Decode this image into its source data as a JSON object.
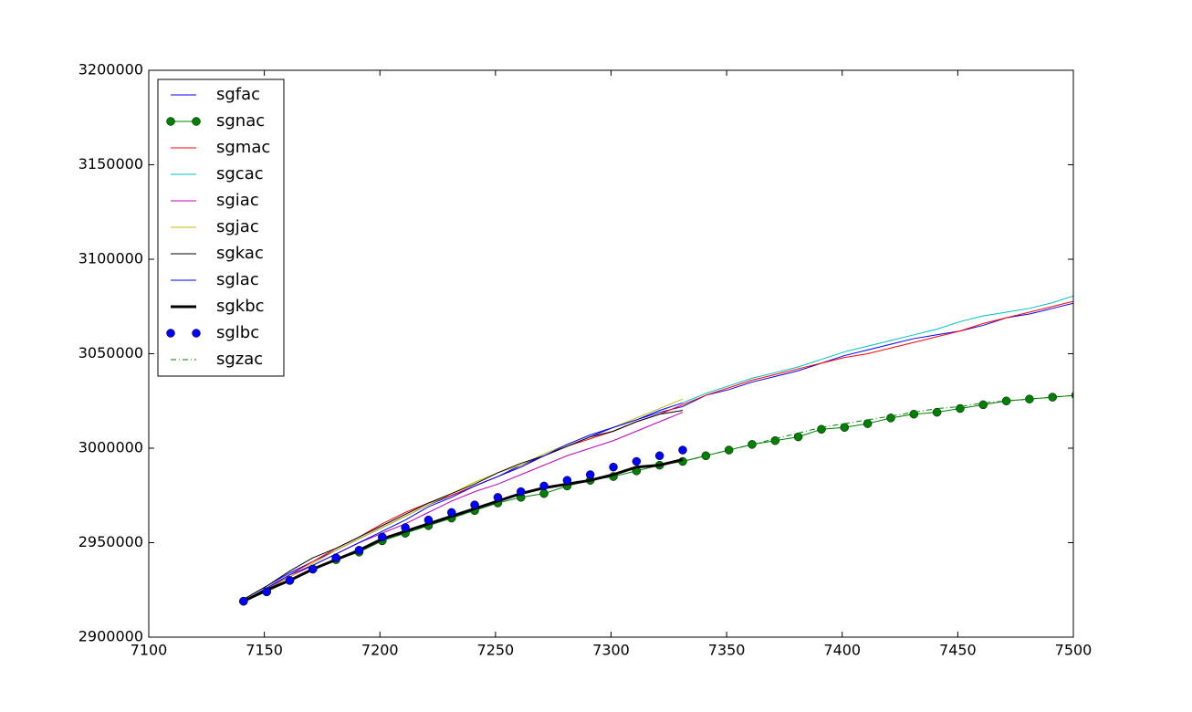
{
  "chart_data": {
    "type": "line",
    "x": [
      7141,
      7151,
      7161,
      7171,
      7181,
      7191,
      7201,
      7211,
      7221,
      7231,
      7241,
      7251,
      7261,
      7271,
      7281,
      7291,
      7301,
      7311,
      7321,
      7331,
      7341,
      7351,
      7361,
      7371,
      7381,
      7391,
      7401,
      7411,
      7421,
      7431,
      7441,
      7451,
      7461,
      7471,
      7481,
      7491,
      7501
    ],
    "xlim": [
      7100,
      7500
    ],
    "xticks": [
      7100,
      7150,
      7200,
      7250,
      7300,
      7350,
      7400,
      7450,
      7500
    ],
    "ylim": [
      2900000,
      3200000
    ],
    "yticks": [
      2900000,
      2950000,
      3000000,
      3050000,
      3100000,
      3150000,
      3200000
    ],
    "legend": "upper left",
    "series": [
      {
        "name": "sgfac",
        "color": "#0000ff",
        "linewidth": 1,
        "marker": "none",
        "linestyle": "solid",
        "values": [
          2920000,
          2927000,
          2934000,
          2940000,
          2946000,
          2952000,
          2958000,
          2964000,
          2970000,
          2975000,
          2980000,
          2985000,
          2991000,
          2996000,
          3001000,
          3006000,
          3011000,
          3015000,
          3019000,
          3022000,
          3028000,
          3031000,
          3035000,
          3038000,
          3041000,
          3045000,
          3049000,
          3052000,
          3055000,
          3058000,
          3060000,
          3062000,
          3065000,
          3069000,
          3071000,
          3074000,
          3077000
        ]
      },
      {
        "name": "sgnac",
        "color": "#008000",
        "linewidth": 1,
        "marker": "o",
        "linestyle": "solid",
        "values": [
          2919000,
          2924000,
          2930000,
          2936000,
          2941000,
          2945000,
          2951000,
          2955000,
          2959000,
          2963000,
          2967000,
          2971000,
          2974000,
          2976000,
          2980000,
          2983000,
          2985000,
          2988000,
          2991000,
          2993000,
          2996000,
          2999000,
          3002000,
          3004000,
          3006000,
          3010000,
          3011000,
          3013000,
          3016000,
          3018000,
          3019000,
          3021000,
          3023000,
          3025000,
          3026000,
          3027000,
          3028000
        ]
      },
      {
        "name": "sgmac",
        "color": "#ff0000",
        "linewidth": 1,
        "marker": "none",
        "linestyle": "solid",
        "values": [
          2919000,
          2926000,
          2933000,
          2940000,
          2947000,
          2953000,
          2960000,
          2966000,
          2971000,
          2975000,
          2980000,
          2985000,
          2990000,
          2996000,
          3001000,
          3005000,
          3009000,
          3014000,
          3018000,
          3023000,
          3028000,
          3032000,
          3036000,
          3039000,
          3042000,
          3045000,
          3048000,
          3050000,
          3053000,
          3056000,
          3059000,
          3062000,
          3066000,
          3069000,
          3072000,
          3075000,
          3078000
        ]
      },
      {
        "name": "sgcac",
        "color": "#00bfbf",
        "linewidth": 1,
        "marker": "none",
        "linestyle": "solid",
        "values": [
          null,
          null,
          null,
          null,
          null,
          null,
          null,
          null,
          null,
          null,
          null,
          null,
          null,
          null,
          null,
          null,
          null,
          null,
          null,
          3024000,
          3029000,
          3033000,
          3037000,
          3040000,
          3043000,
          3047000,
          3051000,
          3054000,
          3057000,
          3060000,
          3063000,
          3067000,
          3070000,
          3072000,
          3074000,
          3077000,
          3081000
        ]
      },
      {
        "name": "sgiac",
        "color": "#bf00bf",
        "linewidth": 1,
        "marker": "none",
        "linestyle": "solid",
        "values": [
          2919000,
          2926000,
          2932000,
          2938000,
          2944000,
          2950000,
          2955000,
          2960000,
          2966000,
          2972000,
          2977000,
          2981000,
          2986000,
          2991000,
          2996000,
          3000000,
          3004000,
          3009000,
          3014000,
          3019000,
          null,
          null,
          null,
          null,
          null,
          null,
          null,
          null,
          null,
          null,
          null,
          null,
          null,
          null,
          null,
          null,
          null
        ]
      },
      {
        "name": "sgjac",
        "color": "#bfbf00",
        "linewidth": 1,
        "marker": "none",
        "linestyle": "solid",
        "values": [
          2919000,
          2925000,
          2932000,
          2939000,
          2946000,
          2952000,
          2958000,
          2964000,
          2970000,
          2976000,
          2982000,
          2987000,
          2991000,
          2997000,
          3002000,
          3007000,
          3011000,
          3016000,
          3021000,
          3026000,
          null,
          null,
          null,
          null,
          null,
          null,
          null,
          null,
          null,
          null,
          null,
          null,
          null,
          null,
          null,
          null,
          null
        ]
      },
      {
        "name": "sgkac",
        "color": "#000000",
        "linewidth": 1,
        "marker": "none",
        "linestyle": "solid",
        "values": [
          2920000,
          2927000,
          2935000,
          2942000,
          2947000,
          2953000,
          2959000,
          2965000,
          2971000,
          2976000,
          2981000,
          2987000,
          2992000,
          2996000,
          3001000,
          3006000,
          3009000,
          3014000,
          3018000,
          3020000,
          null,
          null,
          null,
          null,
          null,
          null,
          null,
          null,
          null,
          null,
          null,
          null,
          null,
          null,
          null,
          null,
          null
        ]
      },
      {
        "name": "sglac",
        "color": "#0000ff",
        "linewidth": 1,
        "marker": "none",
        "linestyle": "solid",
        "values": [
          2919000,
          2926000,
          2933000,
          2938000,
          2944000,
          2950000,
          2956000,
          2962000,
          2969000,
          2974000,
          2980000,
          2985000,
          2990000,
          2996000,
          3002000,
          3007000,
          3011000,
          3015000,
          3020000,
          3024000,
          null,
          null,
          null,
          null,
          null,
          null,
          null,
          null,
          null,
          null,
          null,
          null,
          null,
          null,
          null,
          null,
          null
        ]
      },
      {
        "name": "sgkbc",
        "color": "#000000",
        "linewidth": 3,
        "marker": "none",
        "linestyle": "solid",
        "values": [
          2919000,
          2925000,
          2930000,
          2936000,
          2941000,
          2946000,
          2952000,
          2956000,
          2960000,
          2964000,
          2968000,
          2972000,
          2976000,
          2979000,
          2981000,
          2983000,
          2986000,
          2990000,
          2991000,
          2994000,
          null,
          null,
          null,
          null,
          null,
          null,
          null,
          null,
          null,
          null,
          null,
          null,
          null,
          null,
          null,
          null,
          null
        ]
      },
      {
        "name": "sglbc",
        "color": "#0000ff",
        "linewidth": 1,
        "marker": "o",
        "linestyle": "none",
        "values": [
          2919000,
          2924000,
          2930000,
          2936000,
          2942000,
          2946000,
          2953000,
          2958000,
          2962000,
          2966000,
          2970000,
          2974000,
          2977000,
          2980000,
          2983000,
          2986000,
          2990000,
          2993000,
          2996000,
          2999000,
          null,
          null,
          null,
          null,
          null,
          null,
          null,
          null,
          null,
          null,
          null,
          null,
          null,
          null,
          null,
          null,
          null
        ]
      },
      {
        "name": "sgzac",
        "color": "#008000",
        "linewidth": 1,
        "marker": "none",
        "linestyle": "dashdot",
        "values": [
          null,
          null,
          null,
          null,
          null,
          null,
          null,
          null,
          null,
          null,
          null,
          null,
          null,
          null,
          null,
          null,
          null,
          null,
          null,
          2993000,
          2996000,
          2999000,
          3002000,
          3005000,
          3008000,
          3011000,
          3013000,
          3015000,
          3017000,
          3019000,
          3021000,
          3022000,
          3024000,
          3025000,
          3026000,
          3027000,
          3028000
        ]
      }
    ]
  }
}
